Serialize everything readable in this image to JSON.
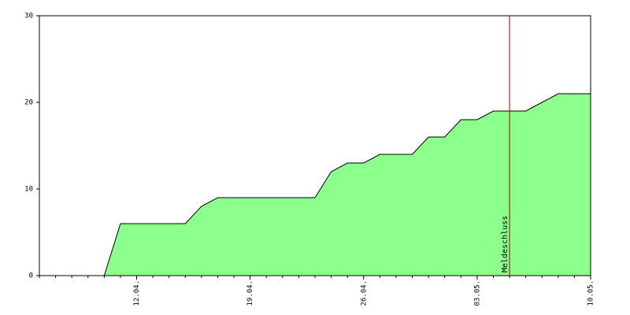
{
  "chart_data": {
    "type": "area",
    "categories": [
      null,
      null,
      null,
      null,
      null,
      null,
      "12.04.",
      null,
      null,
      null,
      null,
      null,
      null,
      "19.04.",
      null,
      null,
      null,
      null,
      null,
      null,
      "26.04.",
      null,
      null,
      null,
      null,
      null,
      null,
      "03.05.",
      null,
      null,
      null,
      null,
      null,
      null,
      "10.05."
    ],
    "series": [
      {
        "color": "#8cff8c",
        "values": [
          0,
          0,
          0,
          0,
          0,
          6,
          6,
          6,
          6,
          6,
          8,
          9,
          9,
          9,
          9,
          9,
          9,
          9,
          12,
          13,
          13,
          14,
          14,
          14,
          16,
          16,
          18,
          18,
          19,
          19,
          19,
          20,
          21,
          21,
          21
        ]
      }
    ],
    "ylim": [
      0,
      30
    ],
    "yticks": [
      0,
      10,
      20,
      30
    ],
    "annotations": [
      {
        "text": "Meldeschluss",
        "at": 29,
        "color": "#a00000"
      }
    ]
  }
}
